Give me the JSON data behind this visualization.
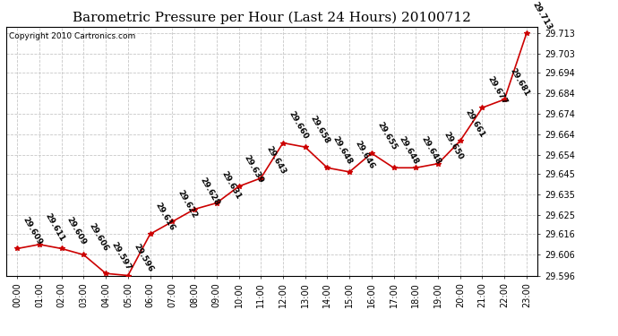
{
  "title": "Barometric Pressure per Hour (Last 24 Hours) 20100712",
  "copyright": "Copyright 2010 Cartronics.com",
  "hours": [
    "00:00",
    "01:00",
    "02:00",
    "03:00",
    "04:00",
    "05:00",
    "06:00",
    "07:00",
    "08:00",
    "09:00",
    "10:00",
    "11:00",
    "12:00",
    "13:00",
    "14:00",
    "15:00",
    "16:00",
    "17:00",
    "18:00",
    "19:00",
    "20:00",
    "21:00",
    "22:00",
    "23:00"
  ],
  "values": [
    29.609,
    29.611,
    29.609,
    29.606,
    29.597,
    29.596,
    29.616,
    29.622,
    29.628,
    29.631,
    29.639,
    29.643,
    29.66,
    29.658,
    29.648,
    29.646,
    29.655,
    29.648,
    29.648,
    29.65,
    29.661,
    29.677,
    29.681,
    29.713
  ],
  "ylim_min": 29.596,
  "ylim_max": 29.716,
  "yticks": [
    29.596,
    29.606,
    29.616,
    29.625,
    29.635,
    29.645,
    29.654,
    29.664,
    29.674,
    29.684,
    29.694,
    29.703,
    29.713
  ],
  "line_color": "#cc0000",
  "marker_color": "#cc0000",
  "bg_color": "#ffffff",
  "grid_color": "#c8c8c8",
  "title_fontsize": 11,
  "label_fontsize": 7,
  "annotation_fontsize": 6.5,
  "copyright_fontsize": 6.5
}
